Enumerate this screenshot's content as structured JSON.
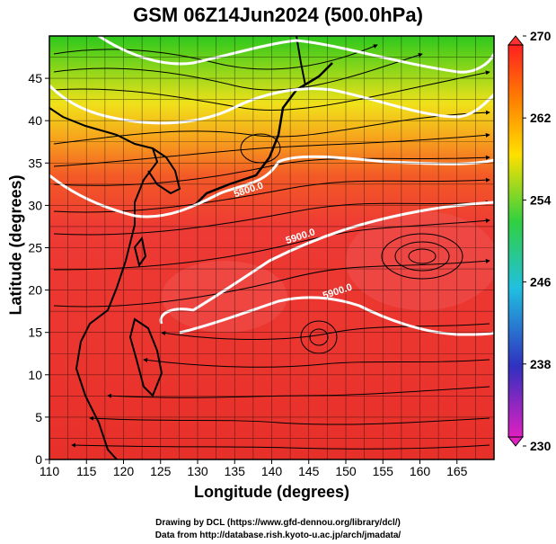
{
  "title": "GSM 06Z14Jun2024 (500.0hPa)",
  "x_axis": {
    "label": "Longitude (degrees)",
    "min": 110,
    "max": 170,
    "ticks": [
      "110",
      "115",
      "120",
      "125",
      "130",
      "135",
      "140",
      "145",
      "150",
      "155",
      "160",
      "165"
    ]
  },
  "y_axis": {
    "label": "Latitude  (degrees)",
    "min": 0,
    "max": 50,
    "ticks": [
      "0",
      "5",
      "10",
      "15",
      "20",
      "25",
      "30",
      "35",
      "40",
      "45"
    ]
  },
  "colorbar": {
    "min": 230,
    "max": 270,
    "ticks": [
      "230",
      "238",
      "246",
      "254",
      "262",
      "270"
    ],
    "colors": [
      "#e020c0",
      "#3030c0",
      "#20c0e0",
      "#30d040",
      "#ffe000",
      "#ff8000",
      "#ff2020"
    ]
  },
  "contours": [
    {
      "label": "5800.0",
      "lon": 137,
      "lat": 31.5
    },
    {
      "label": "5900.0",
      "lon": 144,
      "lat": 26
    },
    {
      "label": "5900.0",
      "lon": 149,
      "lat": 19.5
    }
  ],
  "credits": {
    "line1": "Drawing by DCL (https://www.gfd-dennou.org/library/dcl/)",
    "line2": "Data from http://database.rish.kyoto-u.ac.jp/arch/jmadata/"
  }
}
